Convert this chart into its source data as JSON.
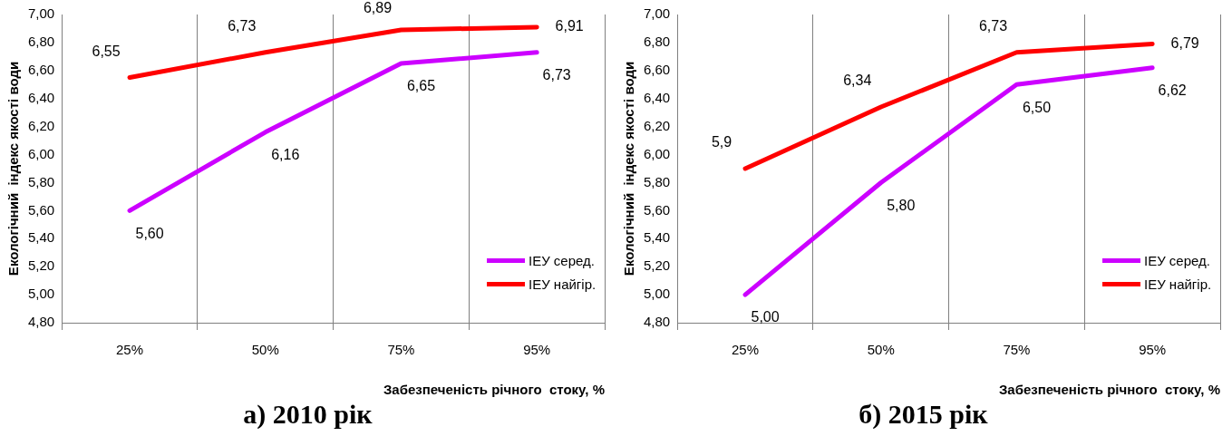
{
  "chart_data": [
    {
      "type": "line",
      "title": "а) 2010 рік",
      "xlabel": "Забезпеченість річного  стоку, %",
      "ylabel": "Екологічний  індекс якості води",
      "categories": [
        "25%",
        "50%",
        "75%",
        "95%"
      ],
      "series": [
        {
          "name": "ІЕУ серед.",
          "color": "#cc00ff",
          "values": [
            5.6,
            6.16,
            6.65,
            6.73
          ],
          "value_labels": [
            "5,60",
            "6,16",
            "6,65",
            "6,73"
          ]
        },
        {
          "name": "ІЕУ найгір.",
          "color": "#ff0000",
          "values": [
            6.55,
            6.73,
            6.89,
            6.91
          ],
          "value_labels": [
            "6,55",
            "6,73",
            "6,89",
            "6,91"
          ]
        }
      ],
      "ylim": [
        4.8,
        7.0
      ],
      "yticks": [
        {
          "value": 4.8,
          "label": "4,80"
        },
        {
          "value": 5.0,
          "label": "5,00"
        },
        {
          "value": 5.2,
          "label": "5,20"
        },
        {
          "value": 5.4,
          "label": "5,40"
        },
        {
          "value": 5.6,
          "label": "5,60"
        },
        {
          "value": 5.8,
          "label": "5,80"
        },
        {
          "value": 6.0,
          "label": "6,00"
        },
        {
          "value": 6.2,
          "label": "6,20"
        },
        {
          "value": 6.4,
          "label": "6,40"
        },
        {
          "value": 6.6,
          "label": "6,60"
        },
        {
          "value": 6.8,
          "label": "6,80"
        },
        {
          "value": 7.0,
          "label": "7,00"
        }
      ],
      "grid": "x",
      "legend": "bottom right",
      "marker": "none",
      "line_style": "solid"
    },
    {
      "type": "line",
      "title": "б) 2015 рік",
      "xlabel": "Забезпеченість річного  стоку, %",
      "ylabel": "Екологічний  індекс якості води",
      "categories": [
        "25%",
        "50%",
        "75%",
        "95%"
      ],
      "series": [
        {
          "name": "ІЕУ серед.",
          "color": "#cc00ff",
          "values": [
            5.0,
            5.8,
            6.5,
            6.62
          ],
          "value_labels": [
            "5,00",
            "5,80",
            "6,50",
            "6,62"
          ]
        },
        {
          "name": "ІЕУ найгір.",
          "color": "#ff0000",
          "values": [
            5.9,
            6.34,
            6.73,
            6.79
          ],
          "value_labels": [
            "5,9",
            "6,34",
            "6,73",
            "6,79"
          ]
        }
      ],
      "ylim": [
        4.8,
        7.0
      ],
      "yticks": [
        {
          "value": 4.8,
          "label": "4,80"
        },
        {
          "value": 5.0,
          "label": "5,00"
        },
        {
          "value": 5.2,
          "label": "5,20"
        },
        {
          "value": 5.4,
          "label": "5,40"
        },
        {
          "value": 5.6,
          "label": "5,60"
        },
        {
          "value": 5.8,
          "label": "5,80"
        },
        {
          "value": 6.0,
          "label": "6,00"
        },
        {
          "value": 6.2,
          "label": "6,20"
        },
        {
          "value": 6.4,
          "label": "6,40"
        },
        {
          "value": 6.6,
          "label": "6,60"
        },
        {
          "value": 6.8,
          "label": "6,80"
        },
        {
          "value": 7.0,
          "label": "7,00"
        }
      ],
      "grid": "x",
      "legend": "bottom right",
      "marker": "none",
      "line_style": "solid"
    }
  ]
}
